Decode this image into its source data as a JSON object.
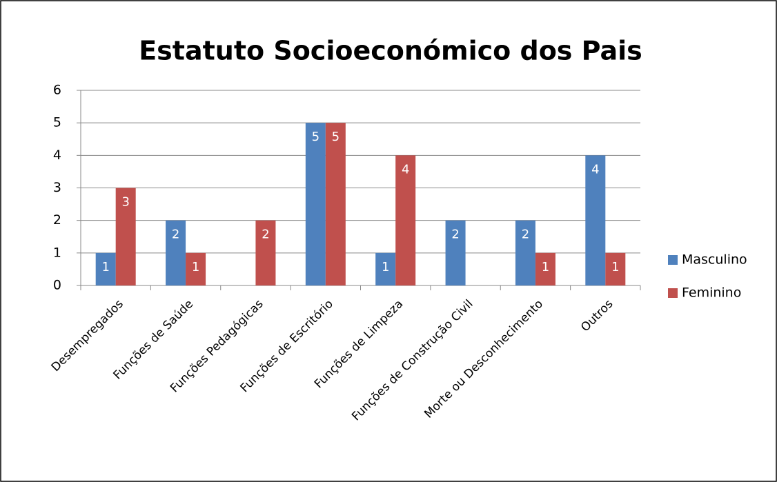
{
  "chart_data": {
    "type": "bar",
    "title": "Estatuto Socioeconómico dos Pais",
    "categories": [
      "Desempregados",
      "Funções de Saúde",
      "Funções Pedagógicas",
      "Funções de Escritório",
      "Funções de Limpeza",
      "Funções de Construção Civil",
      "Morte ou Desconhecimento",
      "Outros"
    ],
    "series": [
      {
        "name": "Masculino",
        "color": "#4f81bd",
        "values": [
          1,
          2,
          null,
          5,
          1,
          2,
          2,
          4
        ]
      },
      {
        "name": "Feminino",
        "color": "#c0504d",
        "values": [
          3,
          1,
          2,
          5,
          4,
          null,
          1,
          1
        ]
      }
    ],
    "ylim": [
      0,
      6
    ],
    "yticks": [
      0,
      1,
      2,
      3,
      4,
      5,
      6
    ],
    "grid": true,
    "legend": "right"
  }
}
